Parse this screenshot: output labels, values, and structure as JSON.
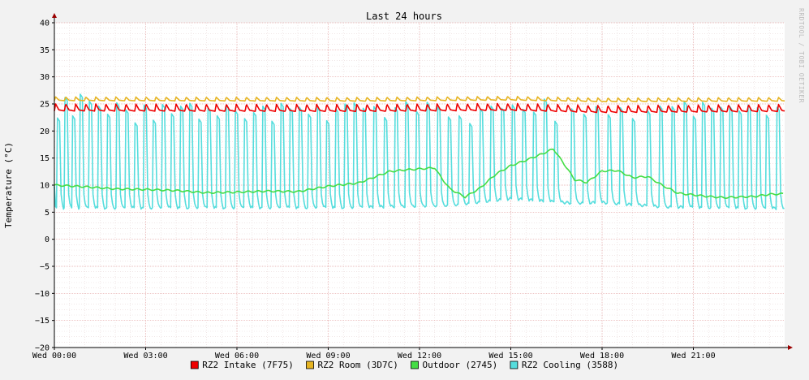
{
  "chart_data": {
    "type": "line",
    "title": "Last 24 hours",
    "ylabel": "Temperature (°C)",
    "xlabel": "",
    "watermark": "RRDTOOL / TOBI OETIKER",
    "ylim": [
      -20,
      40
    ],
    "yticks": [
      40,
      35,
      30,
      25,
      20,
      15,
      10,
      5,
      0,
      -5,
      -10,
      -15,
      -20
    ],
    "xlim": [
      0,
      24
    ],
    "xticks": [
      {
        "hour": 0,
        "label": "Wed 00:00"
      },
      {
        "hour": 3,
        "label": "Wed 03:00"
      },
      {
        "hour": 6,
        "label": "Wed 06:00"
      },
      {
        "hour": 9,
        "label": "Wed 09:00"
      },
      {
        "hour": 12,
        "label": "Wed 12:00"
      },
      {
        "hour": 15,
        "label": "Wed 15:00"
      },
      {
        "hour": 18,
        "label": "Wed 18:00"
      },
      {
        "hour": 21,
        "label": "Wed 21:00"
      }
    ],
    "grid": true,
    "legend_position": "bottom",
    "series": [
      {
        "name": "RZ2 Intake (7F75)",
        "color": "#ee0000",
        "baseline": 23.7,
        "peak": 25.0,
        "cycle_hours": 0.33,
        "level_points": [
          [
            0,
            23.7
          ],
          [
            10,
            23.6
          ],
          [
            15,
            23.8
          ],
          [
            18,
            23.4
          ],
          [
            24,
            23.6
          ]
        ]
      },
      {
        "name": "RZ2 Room (3D7C)",
        "color": "#e6b422",
        "baseline": 25.6,
        "peak": 26.3,
        "cycle_hours": 0.33,
        "level_points": [
          [
            0,
            25.6
          ],
          [
            10,
            25.5
          ],
          [
            15,
            25.7
          ],
          [
            18,
            25.4
          ],
          [
            24,
            25.5
          ]
        ]
      },
      {
        "name": "Outdoor (2745)",
        "color": "#44dd44",
        "points": [
          [
            0,
            10.0
          ],
          [
            1,
            9.7
          ],
          [
            2,
            9.3
          ],
          [
            3,
            9.2
          ],
          [
            4,
            9.0
          ],
          [
            5,
            8.6
          ],
          [
            6,
            8.7
          ],
          [
            7,
            8.9
          ],
          [
            8,
            8.8
          ],
          [
            9,
            9.8
          ],
          [
            10,
            10.4
          ],
          [
            11,
            12.5
          ],
          [
            11.5,
            12.8
          ],
          [
            12,
            13.0
          ],
          [
            12.5,
            13.2
          ],
          [
            12.7,
            11.5
          ],
          [
            13,
            9.3
          ],
          [
            13.5,
            7.8
          ],
          [
            14,
            9.5
          ],
          [
            14.5,
            12.0
          ],
          [
            15,
            13.6
          ],
          [
            15.5,
            14.6
          ],
          [
            16,
            15.7
          ],
          [
            16.4,
            16.7
          ],
          [
            16.8,
            13.5
          ],
          [
            17.1,
            11.0
          ],
          [
            17.5,
            10.5
          ],
          [
            18,
            12.6
          ],
          [
            18.5,
            12.7
          ],
          [
            19,
            11.4
          ],
          [
            19.5,
            11.6
          ],
          [
            20,
            9.9
          ],
          [
            20.5,
            8.5
          ],
          [
            21,
            8.2
          ],
          [
            21.5,
            7.9
          ],
          [
            22,
            7.7
          ],
          [
            23,
            7.9
          ],
          [
            23.5,
            8.3
          ],
          [
            24,
            8.4
          ]
        ]
      },
      {
        "name": "RZ2 Cooling (3588)",
        "color": "#55dddd",
        "low": [
          [
            0,
            5.8
          ],
          [
            10,
            5.9
          ],
          [
            13,
            6.3
          ],
          [
            15,
            7.5
          ],
          [
            17,
            6.7
          ],
          [
            18,
            6.8
          ],
          [
            20,
            6.0
          ],
          [
            24,
            5.7
          ]
        ],
        "spikes": [
          [
            0.1,
            22.4
          ],
          [
            0.35,
            26.2
          ],
          [
            0.6,
            22.8
          ],
          [
            0.85,
            26.8
          ],
          [
            1.15,
            25.5
          ],
          [
            1.45,
            24.6
          ],
          [
            1.75,
            23.1
          ],
          [
            2.05,
            25.2
          ],
          [
            2.35,
            23.9
          ],
          [
            2.65,
            21.5
          ],
          [
            2.95,
            24.8
          ],
          [
            3.25,
            22.0
          ],
          [
            3.55,
            24.9
          ],
          [
            3.85,
            23.2
          ],
          [
            4.15,
            24.6
          ],
          [
            4.45,
            25.1
          ],
          [
            4.75,
            22.2
          ],
          [
            5.05,
            24.2
          ],
          [
            5.35,
            22.8
          ],
          [
            5.65,
            24.8
          ],
          [
            5.95,
            23.7
          ],
          [
            6.25,
            22.3
          ],
          [
            6.55,
            23.4
          ],
          [
            6.85,
            24.6
          ],
          [
            7.15,
            21.8
          ],
          [
            7.45,
            25.1
          ],
          [
            7.75,
            24.1
          ],
          [
            8.05,
            24.4
          ],
          [
            8.35,
            23.1
          ],
          [
            8.65,
            24.3
          ],
          [
            8.95,
            21.9
          ],
          [
            9.25,
            24.1
          ],
          [
            9.55,
            25.0
          ],
          [
            9.85,
            25.2
          ],
          [
            10.15,
            24.2
          ],
          [
            10.5,
            24.5
          ],
          [
            10.85,
            22.5
          ],
          [
            11.2,
            24.3
          ],
          [
            11.55,
            25.4
          ],
          [
            11.9,
            23.6
          ],
          [
            12.25,
            25.3
          ],
          [
            12.6,
            24.4
          ],
          [
            12.95,
            22.6
          ],
          [
            13.3,
            22.8
          ],
          [
            13.65,
            21.4
          ],
          [
            14.0,
            24.1
          ],
          [
            14.35,
            24.6
          ],
          [
            14.7,
            24.2
          ],
          [
            15.05,
            24.8
          ],
          [
            15.4,
            24.0
          ],
          [
            15.75,
            23.5
          ],
          [
            16.1,
            25.9
          ],
          [
            16.45,
            21.8
          ],
          [
            17.0,
            24.1
          ],
          [
            17.4,
            23.1
          ],
          [
            17.8,
            24.5
          ],
          [
            18.2,
            23.0
          ],
          [
            18.6,
            24.3
          ],
          [
            19.0,
            22.3
          ],
          [
            19.5,
            23.7
          ],
          [
            19.9,
            24.6
          ],
          [
            20.3,
            24.5
          ],
          [
            20.7,
            25.4
          ],
          [
            21.0,
            22.7
          ],
          [
            21.3,
            25.3
          ],
          [
            21.6,
            24.2
          ],
          [
            21.9,
            24.4
          ],
          [
            22.2,
            24.5
          ],
          [
            22.5,
            23.7
          ],
          [
            22.8,
            24.8
          ],
          [
            23.1,
            24.3
          ],
          [
            23.4,
            22.9
          ],
          [
            23.75,
            24.4
          ]
        ]
      }
    ]
  }
}
